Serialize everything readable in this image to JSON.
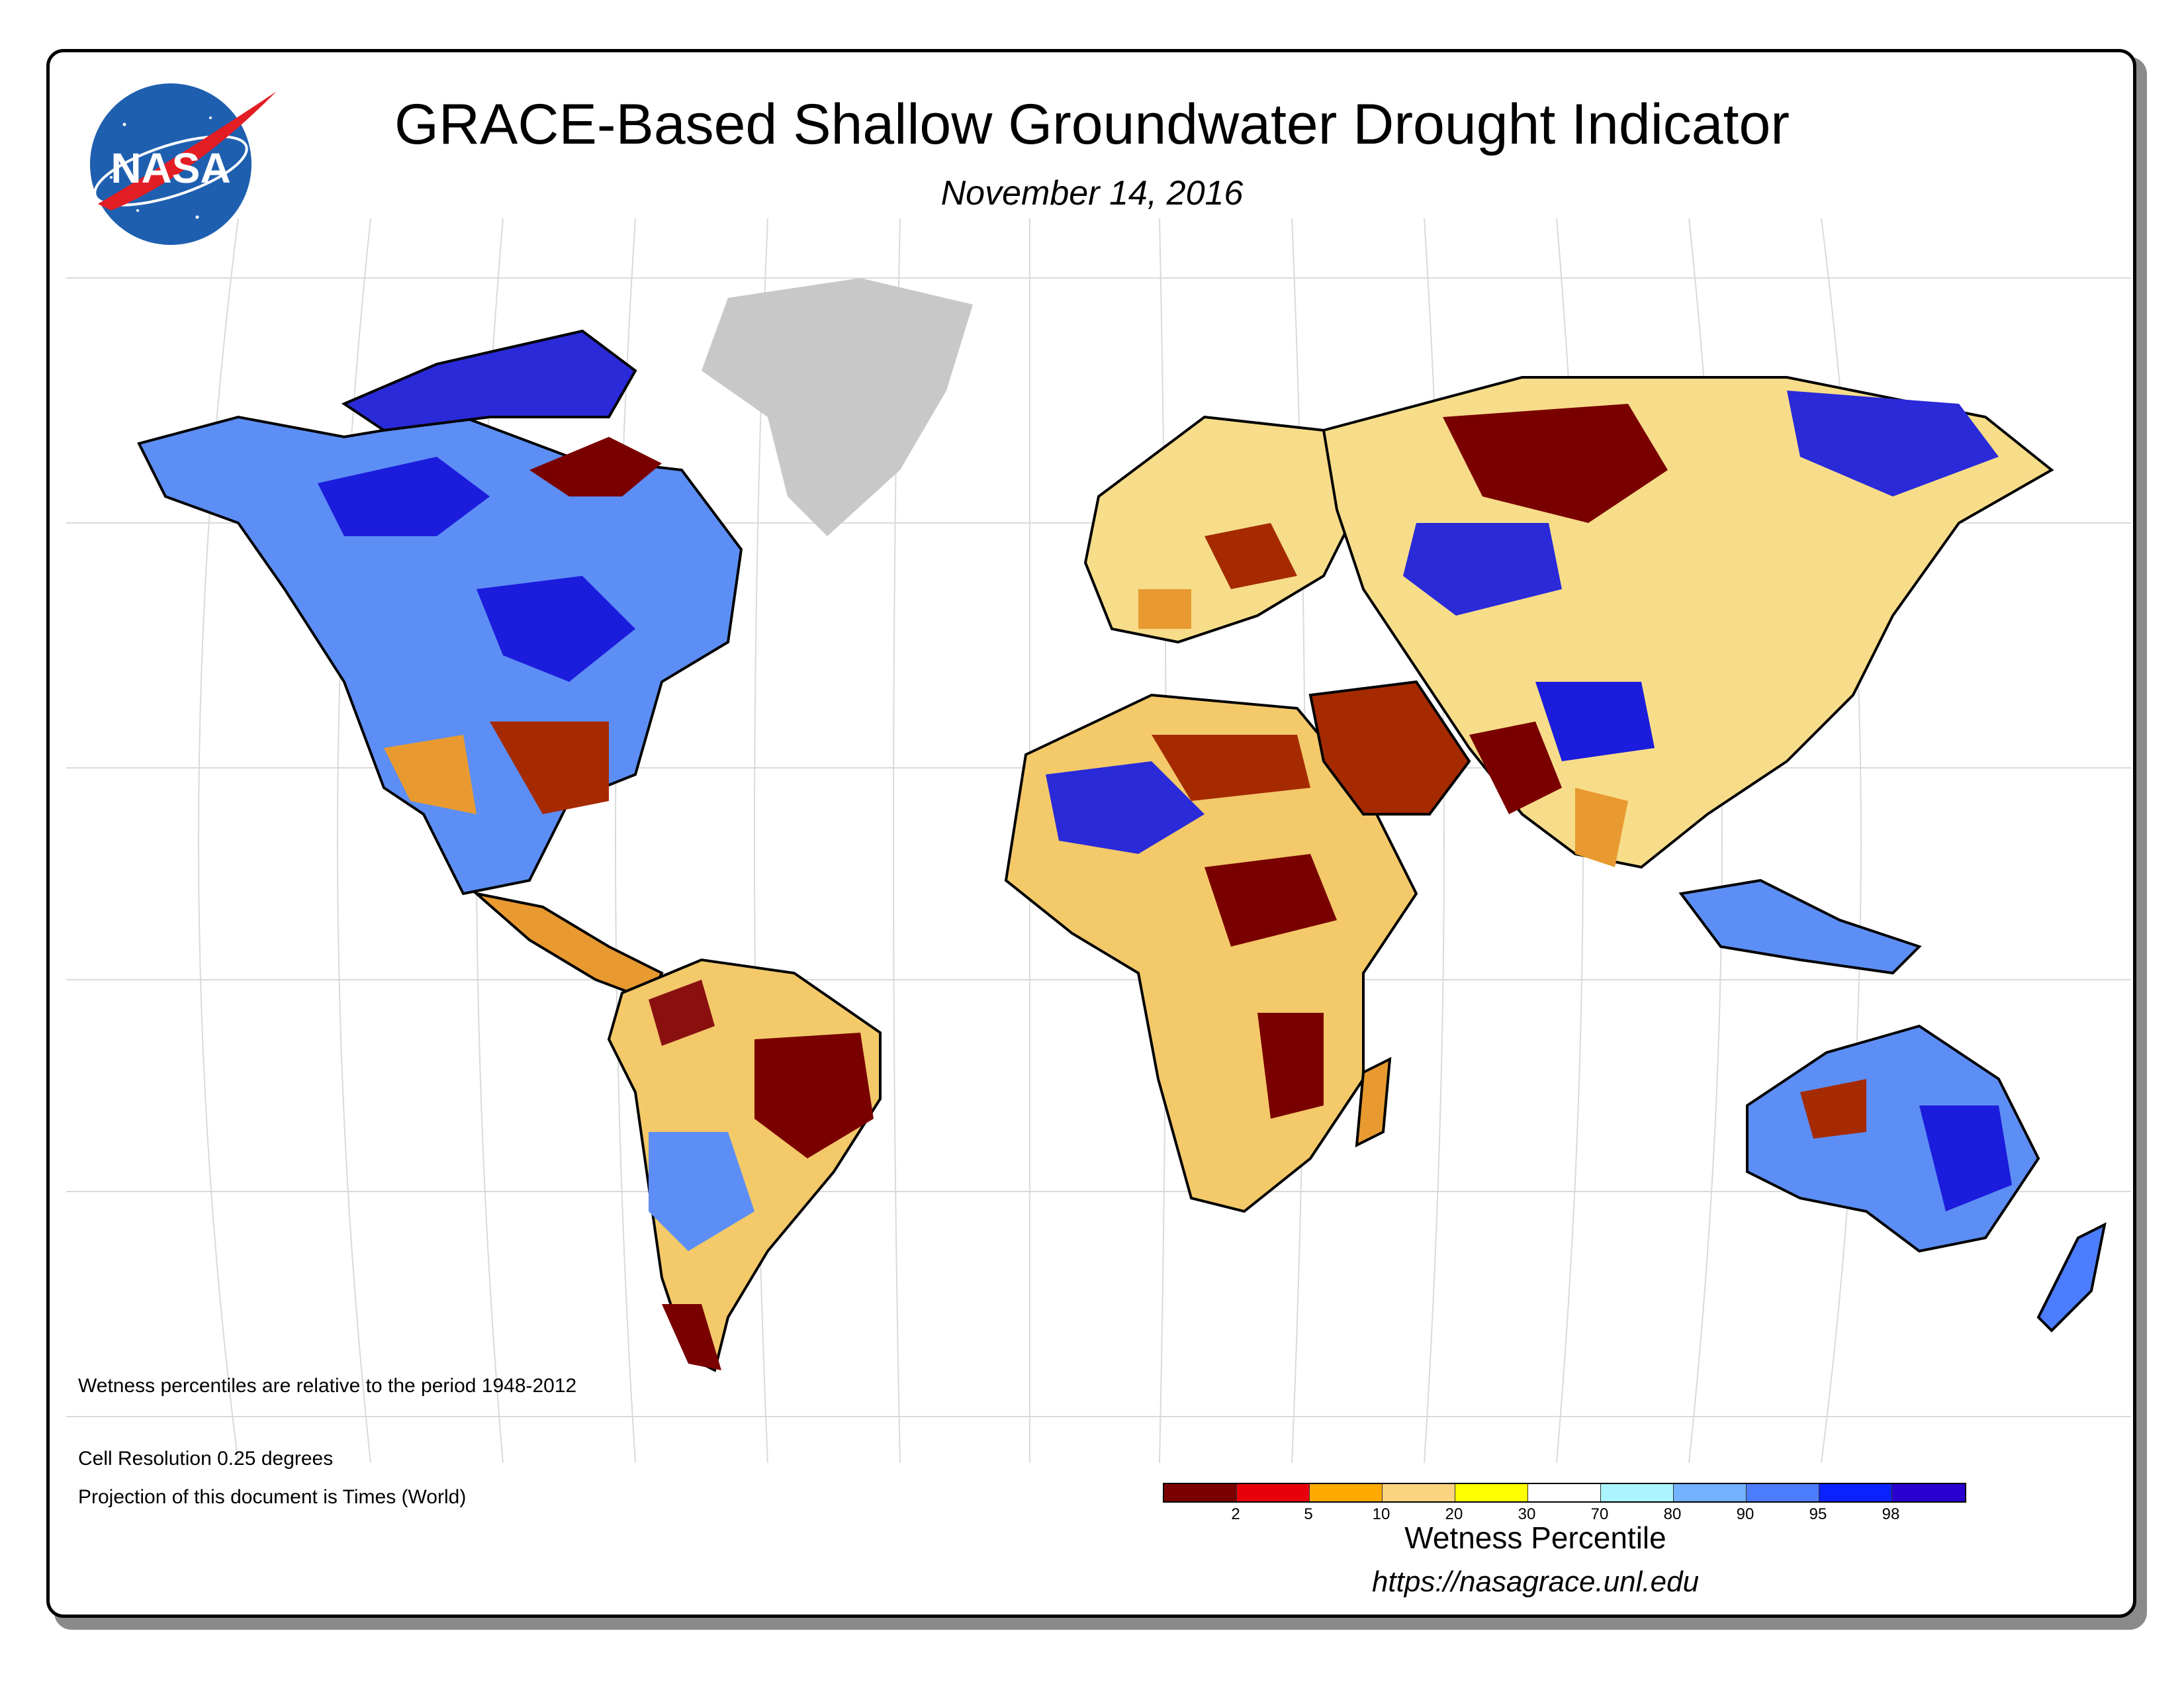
{
  "header": {
    "logo_text": "NASA",
    "title": "GRACE-Based Shallow Groundwater Drought Indicator",
    "date": "November 14, 2016"
  },
  "notes": {
    "baseline": "Wetness percentiles are relative to the period 1948-2012",
    "resolution": "Cell Resolution 0.25 degrees",
    "projection": "Projection of this document is Times (World)"
  },
  "legend": {
    "title": "Wetness Percentile",
    "colors": [
      "#7a0000",
      "#e8000b",
      "#ffaa00",
      "#fcd37f",
      "#ffff00",
      "#ffffff",
      "#aaf5ff",
      "#73b2ff",
      "#4d7dff",
      "#0a22ff",
      "#2a00d0"
    ],
    "ticks": [
      "2",
      "5",
      "10",
      "20",
      "30",
      "70",
      "80",
      "90",
      "95",
      "98"
    ]
  },
  "footer": {
    "url": "https://nasagrace.unl.edu"
  },
  "map": {
    "no_data_color": "#c8c8c8",
    "graticule_color": "#d9d9d9",
    "projection": "Times (World)"
  }
}
